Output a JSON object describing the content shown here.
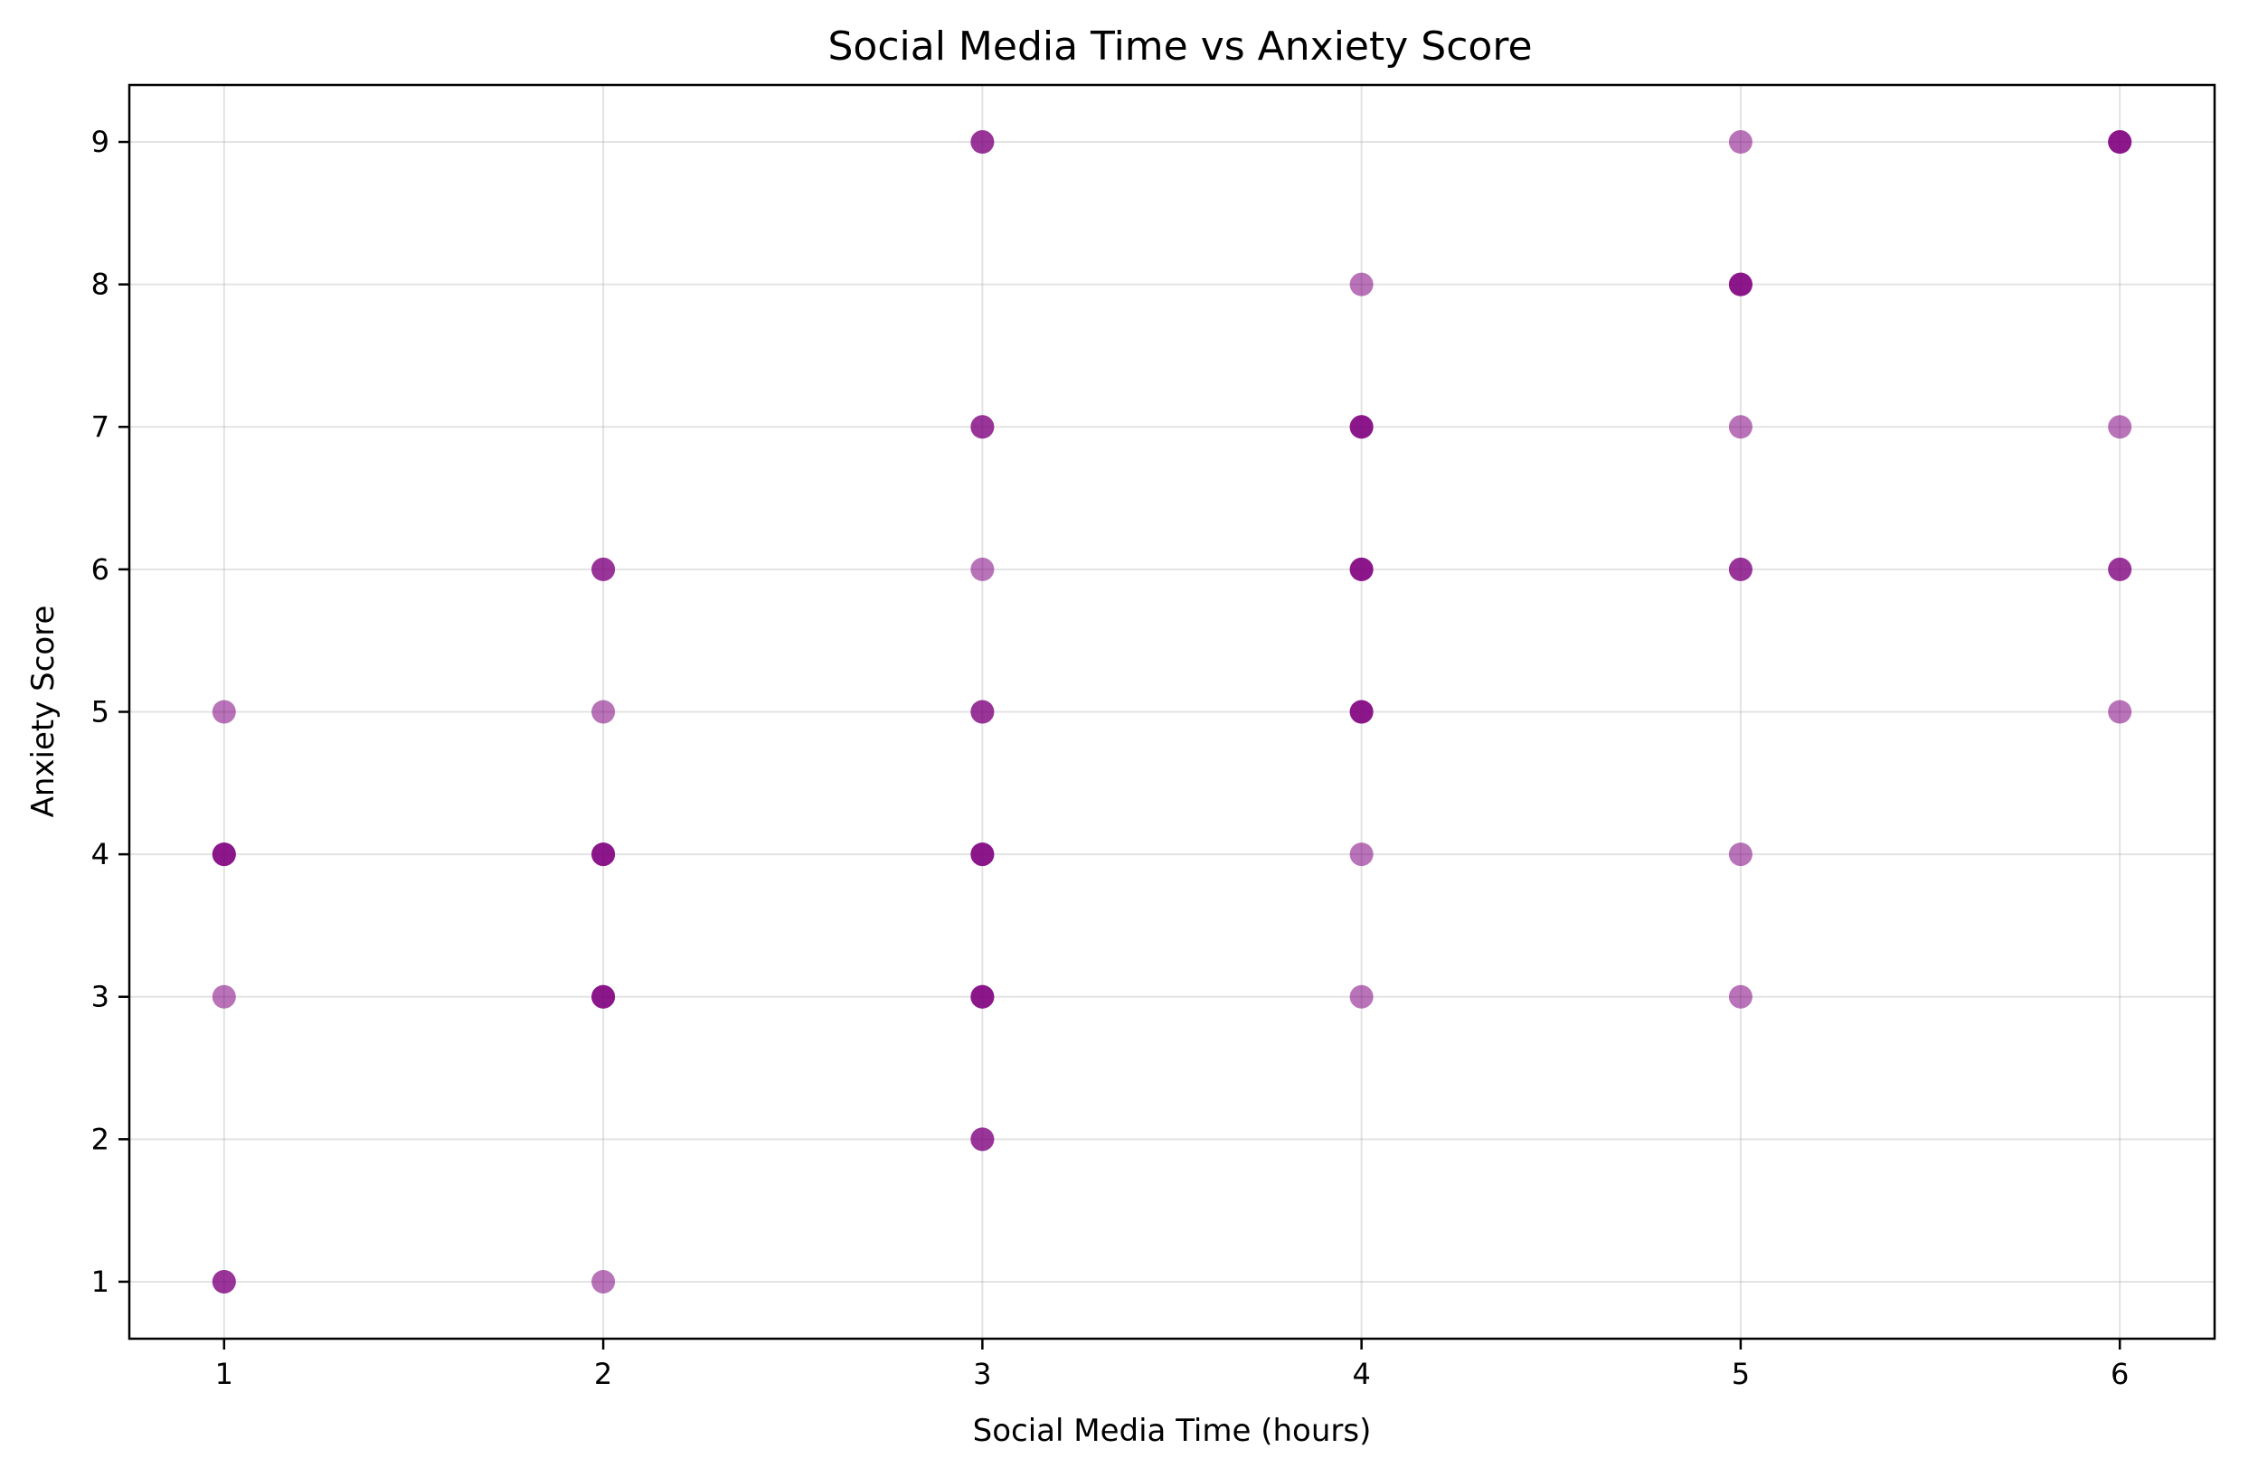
{
  "chart_data": {
    "type": "scatter",
    "title": "Social Media Time vs Anxiety Score",
    "xlabel": "Social Media Time (hours)",
    "ylabel": "Anxiety Score",
    "xlim": [
      0.75,
      6.25
    ],
    "ylim": [
      0.6,
      9.4
    ],
    "xticks": [
      1,
      2,
      3,
      4,
      5,
      6
    ],
    "yticks": [
      1,
      2,
      3,
      4,
      5,
      6,
      7,
      8,
      9
    ],
    "grid": true,
    "marker_color": "#800080",
    "marker_alpha": 0.55,
    "points": [
      {
        "x": 1,
        "y": 1
      },
      {
        "x": 1,
        "y": 1
      },
      {
        "x": 1,
        "y": 3
      },
      {
        "x": 1,
        "y": 4
      },
      {
        "x": 1,
        "y": 4
      },
      {
        "x": 1,
        "y": 4
      },
      {
        "x": 1,
        "y": 5
      },
      {
        "x": 2,
        "y": 1
      },
      {
        "x": 2,
        "y": 3
      },
      {
        "x": 2,
        "y": 3
      },
      {
        "x": 2,
        "y": 3
      },
      {
        "x": 2,
        "y": 4
      },
      {
        "x": 2,
        "y": 4
      },
      {
        "x": 2,
        "y": 4
      },
      {
        "x": 2,
        "y": 5
      },
      {
        "x": 2,
        "y": 6
      },
      {
        "x": 2,
        "y": 6
      },
      {
        "x": 3,
        "y": 2
      },
      {
        "x": 3,
        "y": 2
      },
      {
        "x": 3,
        "y": 3
      },
      {
        "x": 3,
        "y": 3
      },
      {
        "x": 3,
        "y": 3
      },
      {
        "x": 3,
        "y": 4
      },
      {
        "x": 3,
        "y": 4
      },
      {
        "x": 3,
        "y": 4
      },
      {
        "x": 3,
        "y": 5
      },
      {
        "x": 3,
        "y": 5
      },
      {
        "x": 3,
        "y": 6
      },
      {
        "x": 3,
        "y": 7
      },
      {
        "x": 3,
        "y": 7
      },
      {
        "x": 3,
        "y": 9
      },
      {
        "x": 3,
        "y": 9
      },
      {
        "x": 4,
        "y": 3
      },
      {
        "x": 4,
        "y": 4
      },
      {
        "x": 4,
        "y": 5
      },
      {
        "x": 4,
        "y": 5
      },
      {
        "x": 4,
        "y": 5
      },
      {
        "x": 4,
        "y": 6
      },
      {
        "x": 4,
        "y": 6
      },
      {
        "x": 4,
        "y": 6
      },
      {
        "x": 4,
        "y": 7
      },
      {
        "x": 4,
        "y": 7
      },
      {
        "x": 4,
        "y": 7
      },
      {
        "x": 4,
        "y": 8
      },
      {
        "x": 5,
        "y": 3
      },
      {
        "x": 5,
        "y": 4
      },
      {
        "x": 5,
        "y": 6
      },
      {
        "x": 5,
        "y": 6
      },
      {
        "x": 5,
        "y": 7
      },
      {
        "x": 5,
        "y": 8
      },
      {
        "x": 5,
        "y": 8
      },
      {
        "x": 5,
        "y": 8
      },
      {
        "x": 5,
        "y": 9
      },
      {
        "x": 6,
        "y": 5
      },
      {
        "x": 6,
        "y": 6
      },
      {
        "x": 6,
        "y": 6
      },
      {
        "x": 6,
        "y": 7
      },
      {
        "x": 6,
        "y": 9
      },
      {
        "x": 6,
        "y": 9
      },
      {
        "x": 6,
        "y": 9
      }
    ]
  }
}
